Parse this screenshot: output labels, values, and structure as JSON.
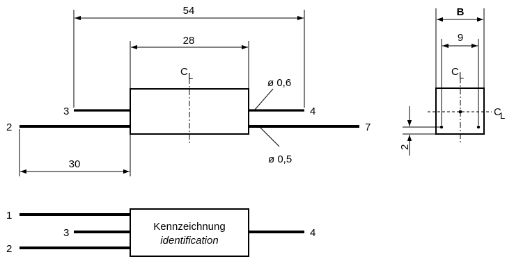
{
  "side_view": {
    "dim_total_length": "54",
    "dim_body_length": "28",
    "dim_lead_length": "30",
    "centerline_label": "C",
    "centerline_sub": "L",
    "lead_diameter_upper": "ø 0,6",
    "lead_diameter_lower": "ø 0,5",
    "pins": {
      "p3": "3",
      "p2": "2",
      "p4": "4",
      "p7": "7"
    }
  },
  "end_view": {
    "dim_b": "B",
    "dim_9": "9",
    "dim_2": "2",
    "centerline_label": "C",
    "centerline_sub": "L",
    "side_centerline_label": "C",
    "side_centerline_sub": "L"
  },
  "bottom_view": {
    "pins": {
      "p1": "1",
      "p3": "3",
      "p2": "2",
      "p4": "4"
    },
    "label_de": "Kennzeichnung",
    "label_en": "identification"
  }
}
